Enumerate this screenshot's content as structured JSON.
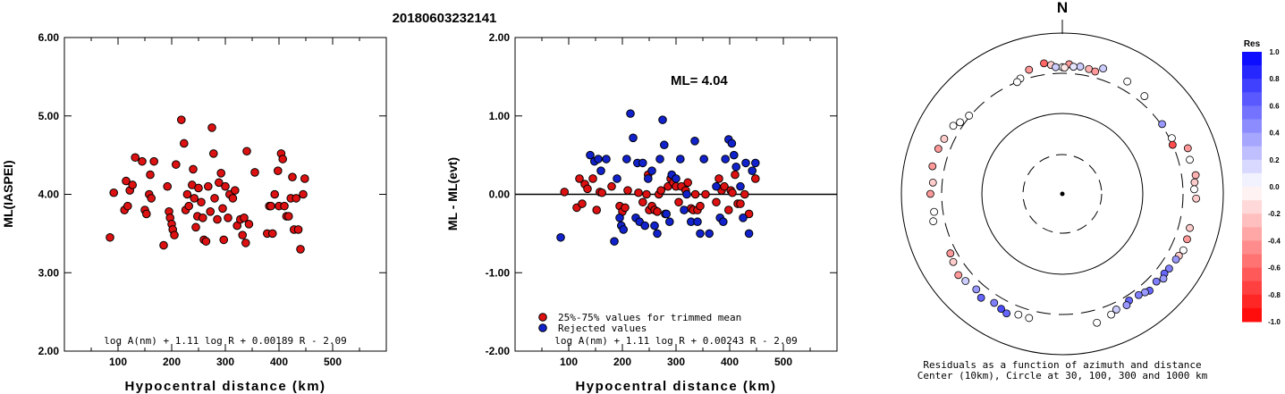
{
  "figure_title": "20180603232141",
  "chart_data": [
    {
      "type": "scatter",
      "title": "",
      "xlabel": "Hypocentral distance (km)",
      "ylabel": "ML(IASPEI)",
      "xlim": [
        0,
        600
      ],
      "ylim": [
        2.0,
        6.0
      ],
      "x_ticks": [
        "100",
        "200",
        "300",
        "400",
        "500"
      ],
      "y_ticks": [
        "2.00",
        "3.00",
        "4.00",
        "5.00",
        "6.00"
      ],
      "formula": "log A(nm) + 1.11 log R + 0.00189 R - 2.09",
      "series": [
        {
          "color": "#dd1111",
          "points": [
            [
              85,
              3.45
            ],
            [
              92,
              4.02
            ],
            [
              112,
              3.8
            ],
            [
              115,
              4.17
            ],
            [
              118,
              3.85
            ],
            [
              122,
              4.05
            ],
            [
              127,
              4.12
            ],
            [
              132,
              4.47
            ],
            [
              145,
              4.42
            ],
            [
              150,
              3.8
            ],
            [
              153,
              3.75
            ],
            [
              158,
              4.0
            ],
            [
              160,
              4.25
            ],
            [
              162,
              3.95
            ],
            [
              167,
              4.42
            ],
            [
              185,
              3.35
            ],
            [
              192,
              4.1
            ],
            [
              195,
              3.78
            ],
            [
              197,
              3.7
            ],
            [
              200,
              3.62
            ],
            [
              202,
              3.55
            ],
            [
              205,
              3.48
            ],
            [
              208,
              4.38
            ],
            [
              218,
              4.95
            ],
            [
              223,
              4.65
            ],
            [
              226,
              3.8
            ],
            [
              229,
              4.0
            ],
            [
              232,
              3.85
            ],
            [
              238,
              4.12
            ],
            [
              240,
              4.32
            ],
            [
              242,
              3.95
            ],
            [
              245,
              3.58
            ],
            [
              248,
              3.72
            ],
            [
              250,
              4.08
            ],
            [
              255,
              3.9
            ],
            [
              258,
              3.7
            ],
            [
              260,
              3.42
            ],
            [
              264,
              3.4
            ],
            [
              268,
              4.1
            ],
            [
              272,
              3.78
            ],
            [
              275,
              4.85
            ],
            [
              278,
              4.52
            ],
            [
              280,
              3.95
            ],
            [
              285,
              3.68
            ],
            [
              288,
              4.15
            ],
            [
              292,
              4.27
            ],
            [
              295,
              3.82
            ],
            [
              297,
              3.42
            ],
            [
              300,
              4.1
            ],
            [
              305,
              3.7
            ],
            [
              308,
              4.0
            ],
            [
              314,
              3.95
            ],
            [
              318,
              4.05
            ],
            [
              322,
              3.6
            ],
            [
              328,
              3.68
            ],
            [
              332,
              3.48
            ],
            [
              335,
              3.7
            ],
            [
              338,
              3.38
            ],
            [
              340,
              4.55
            ],
            [
              344,
              3.62
            ],
            [
              355,
              4.28
            ],
            [
              378,
              3.5
            ],
            [
              382,
              3.85
            ],
            [
              385,
              3.85
            ],
            [
              388,
              3.5
            ],
            [
              392,
              4.0
            ],
            [
              398,
              4.3
            ],
            [
              400,
              3.85
            ],
            [
              404,
              4.52
            ],
            [
              407,
              4.45
            ],
            [
              410,
              3.85
            ],
            [
              414,
              3.72
            ],
            [
              418,
              3.72
            ],
            [
              422,
              3.95
            ],
            [
              425,
              4.22
            ],
            [
              428,
              3.55
            ],
            [
              432,
              3.95
            ],
            [
              436,
              3.55
            ],
            [
              440,
              3.3
            ],
            [
              445,
              4.0
            ],
            [
              448,
              4.2
            ]
          ]
        }
      ]
    },
    {
      "type": "scatter",
      "title": "",
      "xlabel": "Hypocentral distance (km)",
      "ylabel": "ML - ML(evt)",
      "xlim": [
        0,
        600
      ],
      "ylim": [
        -2.0,
        2.0
      ],
      "x_ticks": [
        "100",
        "200",
        "300",
        "400",
        "500"
      ],
      "y_ticks": [
        "-2.00",
        "-1.00",
        "0.00",
        "1.00",
        "2.00"
      ],
      "annotation": "ML= 4.04",
      "formula": "log A(nm) + 1.11 log R + 0.00243 R - 2.09",
      "series": [
        {
          "name": "25%-75% values for trimmed mean",
          "color": "#dd1111",
          "points": [
            [
              92,
              0.03
            ],
            [
              115,
              -0.17
            ],
            [
              120,
              0.2
            ],
            [
              125,
              -0.12
            ],
            [
              130,
              0.13
            ],
            [
              135,
              0.07
            ],
            [
              145,
              0.2
            ],
            [
              152,
              -0.2
            ],
            [
              158,
              0.03
            ],
            [
              162,
              0.02
            ],
            [
              180,
              0.1
            ],
            [
              195,
              -0.15
            ],
            [
              200,
              -0.22
            ],
            [
              205,
              -0.17
            ],
            [
              210,
              0.05
            ],
            [
              230,
              0.02
            ],
            [
              238,
              -0.1
            ],
            [
              245,
              0.0
            ],
            [
              248,
              0.25
            ],
            [
              250,
              -0.2
            ],
            [
              255,
              -0.15
            ],
            [
              260,
              -0.2
            ],
            [
              265,
              -0.22
            ],
            [
              268,
              0.0
            ],
            [
              272,
              0.05
            ],
            [
              280,
              -0.25
            ],
            [
              285,
              0.1
            ],
            [
              290,
              0.2
            ],
            [
              295,
              0.15
            ],
            [
              300,
              0.1
            ],
            [
              305,
              -0.1
            ],
            [
              310,
              0.1
            ],
            [
              318,
              0.05
            ],
            [
              322,
              0.15
            ],
            [
              328,
              -0.18
            ],
            [
              332,
              -0.2
            ],
            [
              336,
              0.0
            ],
            [
              340,
              -0.2
            ],
            [
              345,
              -0.15
            ],
            [
              355,
              0.0
            ],
            [
              375,
              -0.1
            ],
            [
              380,
              0.2
            ],
            [
              385,
              0.05
            ],
            [
              390,
              0.1
            ],
            [
              398,
              -0.2
            ],
            [
              402,
              0.05
            ],
            [
              405,
              0.02
            ],
            [
              410,
              0.25
            ],
            [
              415,
              -0.12
            ],
            [
              420,
              -0.12
            ],
            [
              428,
              0.0
            ],
            [
              436,
              -0.25
            ],
            [
              448,
              0.2
            ]
          ]
        },
        {
          "name": "Rejected values",
          "color": "#1122cc",
          "points": [
            [
              85,
              -0.55
            ],
            [
              140,
              0.5
            ],
            [
              148,
              0.42
            ],
            [
              155,
              0.45
            ],
            [
              160,
              0.3
            ],
            [
              170,
              0.45
            ],
            [
              185,
              -0.6
            ],
            [
              190,
              0.2
            ],
            [
              195,
              -0.3
            ],
            [
              198,
              -0.4
            ],
            [
              202,
              -0.45
            ],
            [
              208,
              0.45
            ],
            [
              215,
              1.03
            ],
            [
              220,
              0.72
            ],
            [
              225,
              -0.3
            ],
            [
              228,
              0.4
            ],
            [
              232,
              -0.35
            ],
            [
              238,
              0.4
            ],
            [
              242,
              -0.4
            ],
            [
              248,
              0.2
            ],
            [
              255,
              0.3
            ],
            [
              260,
              -0.4
            ],
            [
              265,
              -0.5
            ],
            [
              270,
              0.45
            ],
            [
              275,
              0.95
            ],
            [
              278,
              0.63
            ],
            [
              282,
              -0.25
            ],
            [
              288,
              -0.35
            ],
            [
              292,
              0.25
            ],
            [
              300,
              0.2
            ],
            [
              308,
              0.45
            ],
            [
              315,
              -0.2
            ],
            [
              320,
              0.0
            ],
            [
              328,
              -0.35
            ],
            [
              335,
              0.68
            ],
            [
              340,
              -0.35
            ],
            [
              345,
              -0.5
            ],
            [
              352,
              0.45
            ],
            [
              362,
              -0.5
            ],
            [
              375,
              0.1
            ],
            [
              382,
              -0.3
            ],
            [
              388,
              -0.35
            ],
            [
              392,
              0.45
            ],
            [
              398,
              0.7
            ],
            [
              404,
              0.65
            ],
            [
              408,
              0.5
            ],
            [
              412,
              0.35
            ],
            [
              420,
              0.1
            ],
            [
              425,
              -0.3
            ],
            [
              430,
              0.4
            ],
            [
              436,
              -0.5
            ],
            [
              442,
              0.3
            ],
            [
              448,
              0.4
            ]
          ]
        }
      ]
    },
    {
      "type": "scatter",
      "title": "",
      "caption_line1": "Residuals as a function of azimuth and distance",
      "caption_line2": "Center (10km), Circle at 30, 100, 300 and 1000 km",
      "north_label": "N",
      "colorbar_title": "Res",
      "colorbar_ticks": [
        "1.0",
        "0.8",
        "0.6",
        "0.4",
        "0.2",
        "0.0",
        "-0.2",
        "-0.4",
        "-0.6",
        "-0.8",
        "-1.0"
      ],
      "circle_distances_km": [
        30,
        100,
        300,
        1000
      ],
      "points_azimuth_deg_distance_km_residual": [
        [
          352,
          420,
          -0.6
        ],
        [
          355,
          390,
          -0.2
        ],
        [
          3,
          395,
          -0.4
        ],
        [
          8,
          380,
          0.2
        ],
        [
          12,
          370,
          -0.3
        ],
        [
          15,
          360,
          -0.4
        ],
        [
          5,
          370,
          0.1
        ],
        [
          0,
          360,
          0.0
        ],
        [
          -3,
          362,
          0.2
        ],
        [
          1,
          355,
          -0.1
        ],
        [
          345,
          380,
          -0.4
        ],
        [
          340,
          320,
          0.0
        ],
        [
          338,
          300,
          0.0
        ],
        [
          18,
          420,
          0.2
        ],
        [
          30,
          395,
          0.0
        ],
        [
          40,
          370,
          0.0
        ],
        [
          55,
          310,
          0.4
        ],
        [
          63,
          320,
          0.0
        ],
        [
          66,
          300,
          -0.7
        ],
        [
          70,
          440,
          -0.4
        ],
        [
          75,
          420,
          0.0
        ],
        [
          82,
          455,
          -0.3
        ],
        [
          85,
          430,
          -0.2
        ],
        [
          88,
          420,
          0.0
        ],
        [
          92,
          445,
          -0.2
        ],
        [
          105,
          420,
          -0.2
        ],
        [
          110,
          430,
          -0.4
        ],
        [
          115,
          440,
          0.0
        ],
        [
          118,
          420,
          -0.2
        ],
        [
          120,
          410,
          0.4
        ],
        [
          125,
          400,
          0.5
        ],
        [
          128,
          390,
          0.6
        ],
        [
          130,
          420,
          0.4
        ],
        [
          133,
          380,
          0.5
        ],
        [
          138,
          400,
          0.6
        ],
        [
          140,
          380,
          0.4
        ],
        [
          143,
          360,
          0.5
        ],
        [
          148,
          350,
          0.6
        ],
        [
          150,
          380,
          0.4
        ],
        [
          155,
          370,
          0.2
        ],
        [
          158,
          400,
          0.0
        ],
        [
          165,
          440,
          0.0
        ],
        [
          195,
          380,
          0.0
        ],
        [
          200,
          380,
          0.0
        ],
        [
          205,
          420,
          0.6
        ],
        [
          208,
          400,
          0.7
        ],
        [
          212,
          380,
          0.5
        ],
        [
          218,
          420,
          0.6
        ],
        [
          222,
          380,
          0.4
        ],
        [
          228,
          400,
          0.2
        ],
        [
          232,
          420,
          -0.4
        ],
        [
          238,
          380,
          -0.2
        ],
        [
          242,
          360,
          -0.4
        ],
        [
          258,
          420,
          0.0
        ],
        [
          262,
          390,
          0.0
        ],
        [
          270,
          420,
          -0.4
        ],
        [
          275,
          395,
          -0.2
        ],
        [
          282,
          430,
          -0.4
        ],
        [
          290,
          420,
          -0.4
        ],
        [
          295,
          400,
          -0.2
        ],
        [
          302,
          380,
          0.0
        ],
        [
          305,
          340,
          0.0
        ],
        [
          310,
          310,
          0.0
        ]
      ]
    }
  ]
}
